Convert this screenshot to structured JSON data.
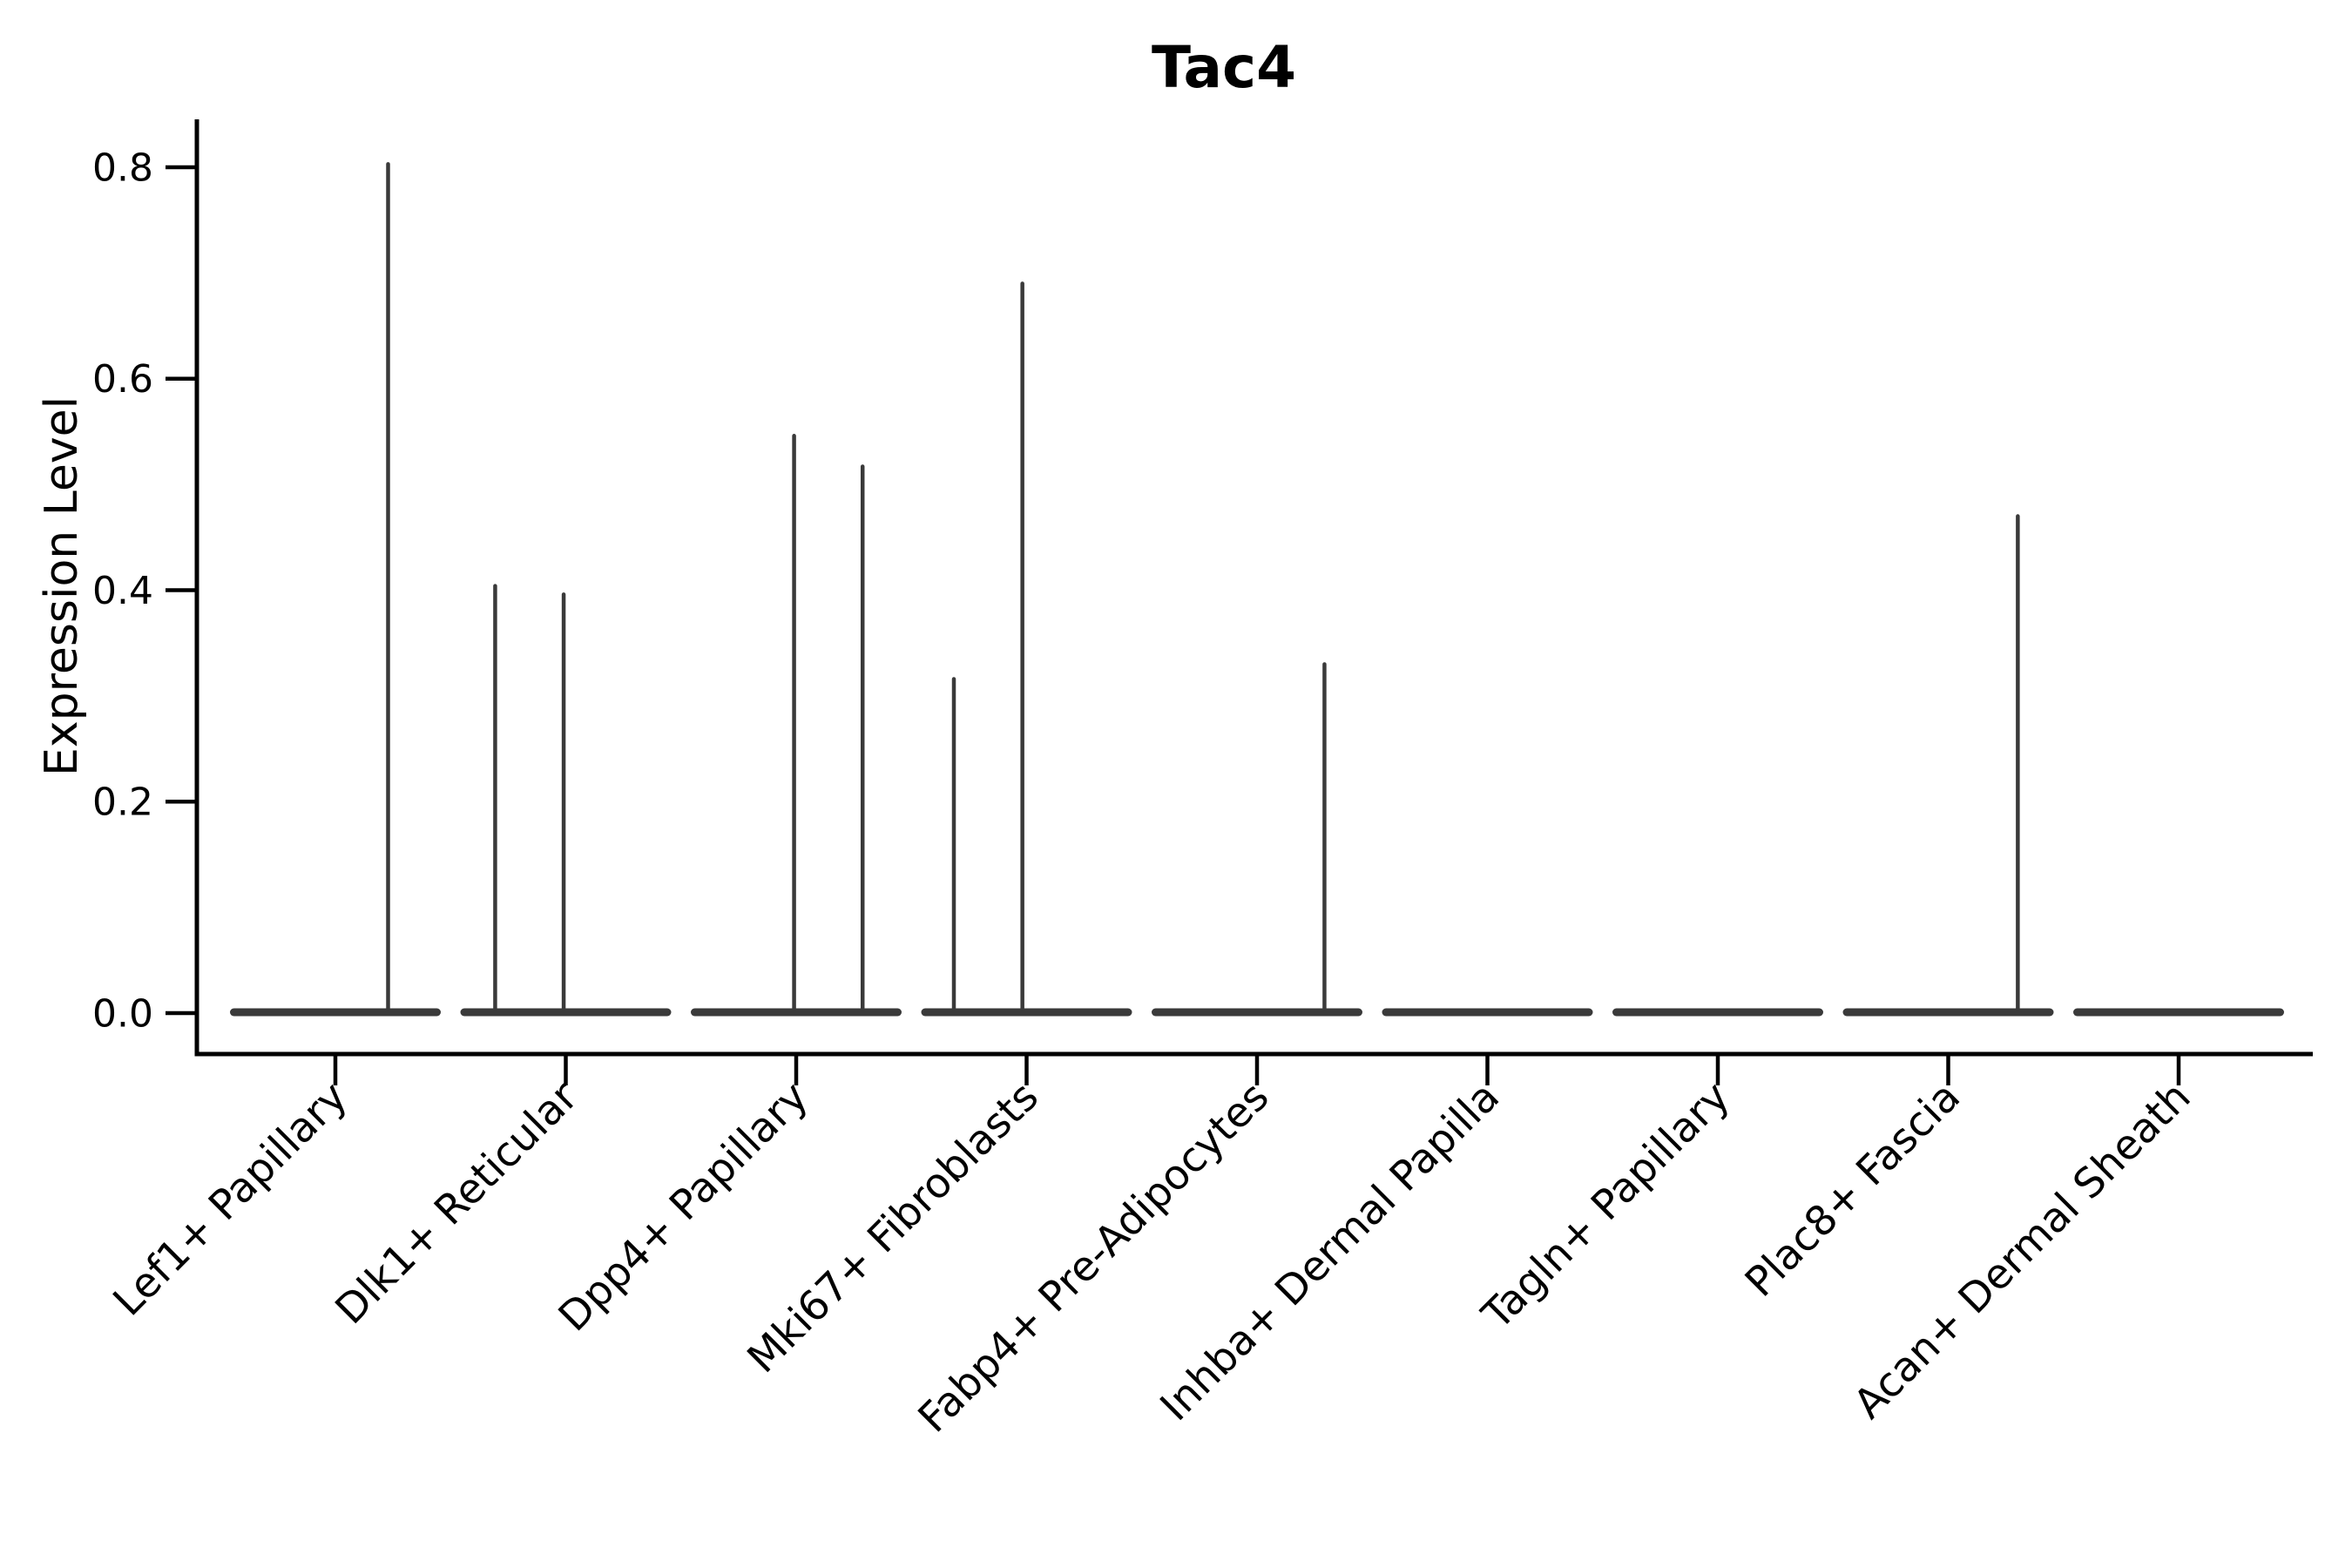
{
  "figure": {
    "title": "Tac4",
    "y_axis_label": "Expression Level"
  },
  "chart_data": {
    "type": "violin",
    "title": "Tac4",
    "xlabel": "",
    "ylabel": "Expression Level",
    "ylim": [
      0,
      0.845
    ],
    "ytick_values": [
      0.0,
      0.2,
      0.4,
      0.6,
      0.8
    ],
    "ytick_labels": [
      "0.0",
      "0.2",
      "0.4",
      "0.6",
      "0.8"
    ],
    "grid": false,
    "legend": "none",
    "categories": [
      "Lef1+ Papillary",
      "Dlk1+ Reticular",
      "Dpp4+ Papillary",
      "Mki67+ Fibroblasts",
      "Fabp4+ Pre-Adipocytes",
      "Inhba+ Dermal Papilla",
      "Tagln+ Papillary",
      "Plac8+ Fascia",
      "Acan+ Dermal Sheath"
    ],
    "violins": [
      {
        "category": "Lef1+ Papillary",
        "zero_density_band": true,
        "spikes": [
          {
            "x_frac": 0.75,
            "value": 0.803
          }
        ]
      },
      {
        "category": "Dlk1+ Reticular",
        "zero_density_band": true,
        "spikes": [
          {
            "x_frac": 0.165,
            "value": 0.404
          },
          {
            "x_frac": 0.49,
            "value": 0.396
          }
        ]
      },
      {
        "category": "Dpp4+ Papillary",
        "zero_density_band": true,
        "spikes": [
          {
            "x_frac": 0.49,
            "value": 0.546
          },
          {
            "x_frac": 0.815,
            "value": 0.517
          }
        ]
      },
      {
        "category": "Mki67+ Fibroblasts",
        "zero_density_band": true,
        "spikes": [
          {
            "x_frac": 0.155,
            "value": 0.316
          },
          {
            "x_frac": 0.48,
            "value": 0.69
          }
        ]
      },
      {
        "category": "Fabp4+ Pre-Adipocytes",
        "zero_density_band": true,
        "spikes": [
          {
            "x_frac": 0.82,
            "value": 0.33
          }
        ]
      },
      {
        "category": "Inhba+ Dermal Papilla",
        "zero_density_band": true,
        "spikes": []
      },
      {
        "category": "Tagln+ Papillary",
        "zero_density_band": true,
        "spikes": []
      },
      {
        "category": "Plac8+ Fascia",
        "zero_density_band": true,
        "spikes": [
          {
            "x_frac": 0.83,
            "value": 0.47
          }
        ]
      },
      {
        "category": "Acan+ Dermal Sheath",
        "zero_density_band": true,
        "spikes": []
      }
    ],
    "colors": {
      "violin": "#3a3a3a",
      "axis": "#000000",
      "text": "#000000",
      "background": "#ffffff"
    }
  }
}
